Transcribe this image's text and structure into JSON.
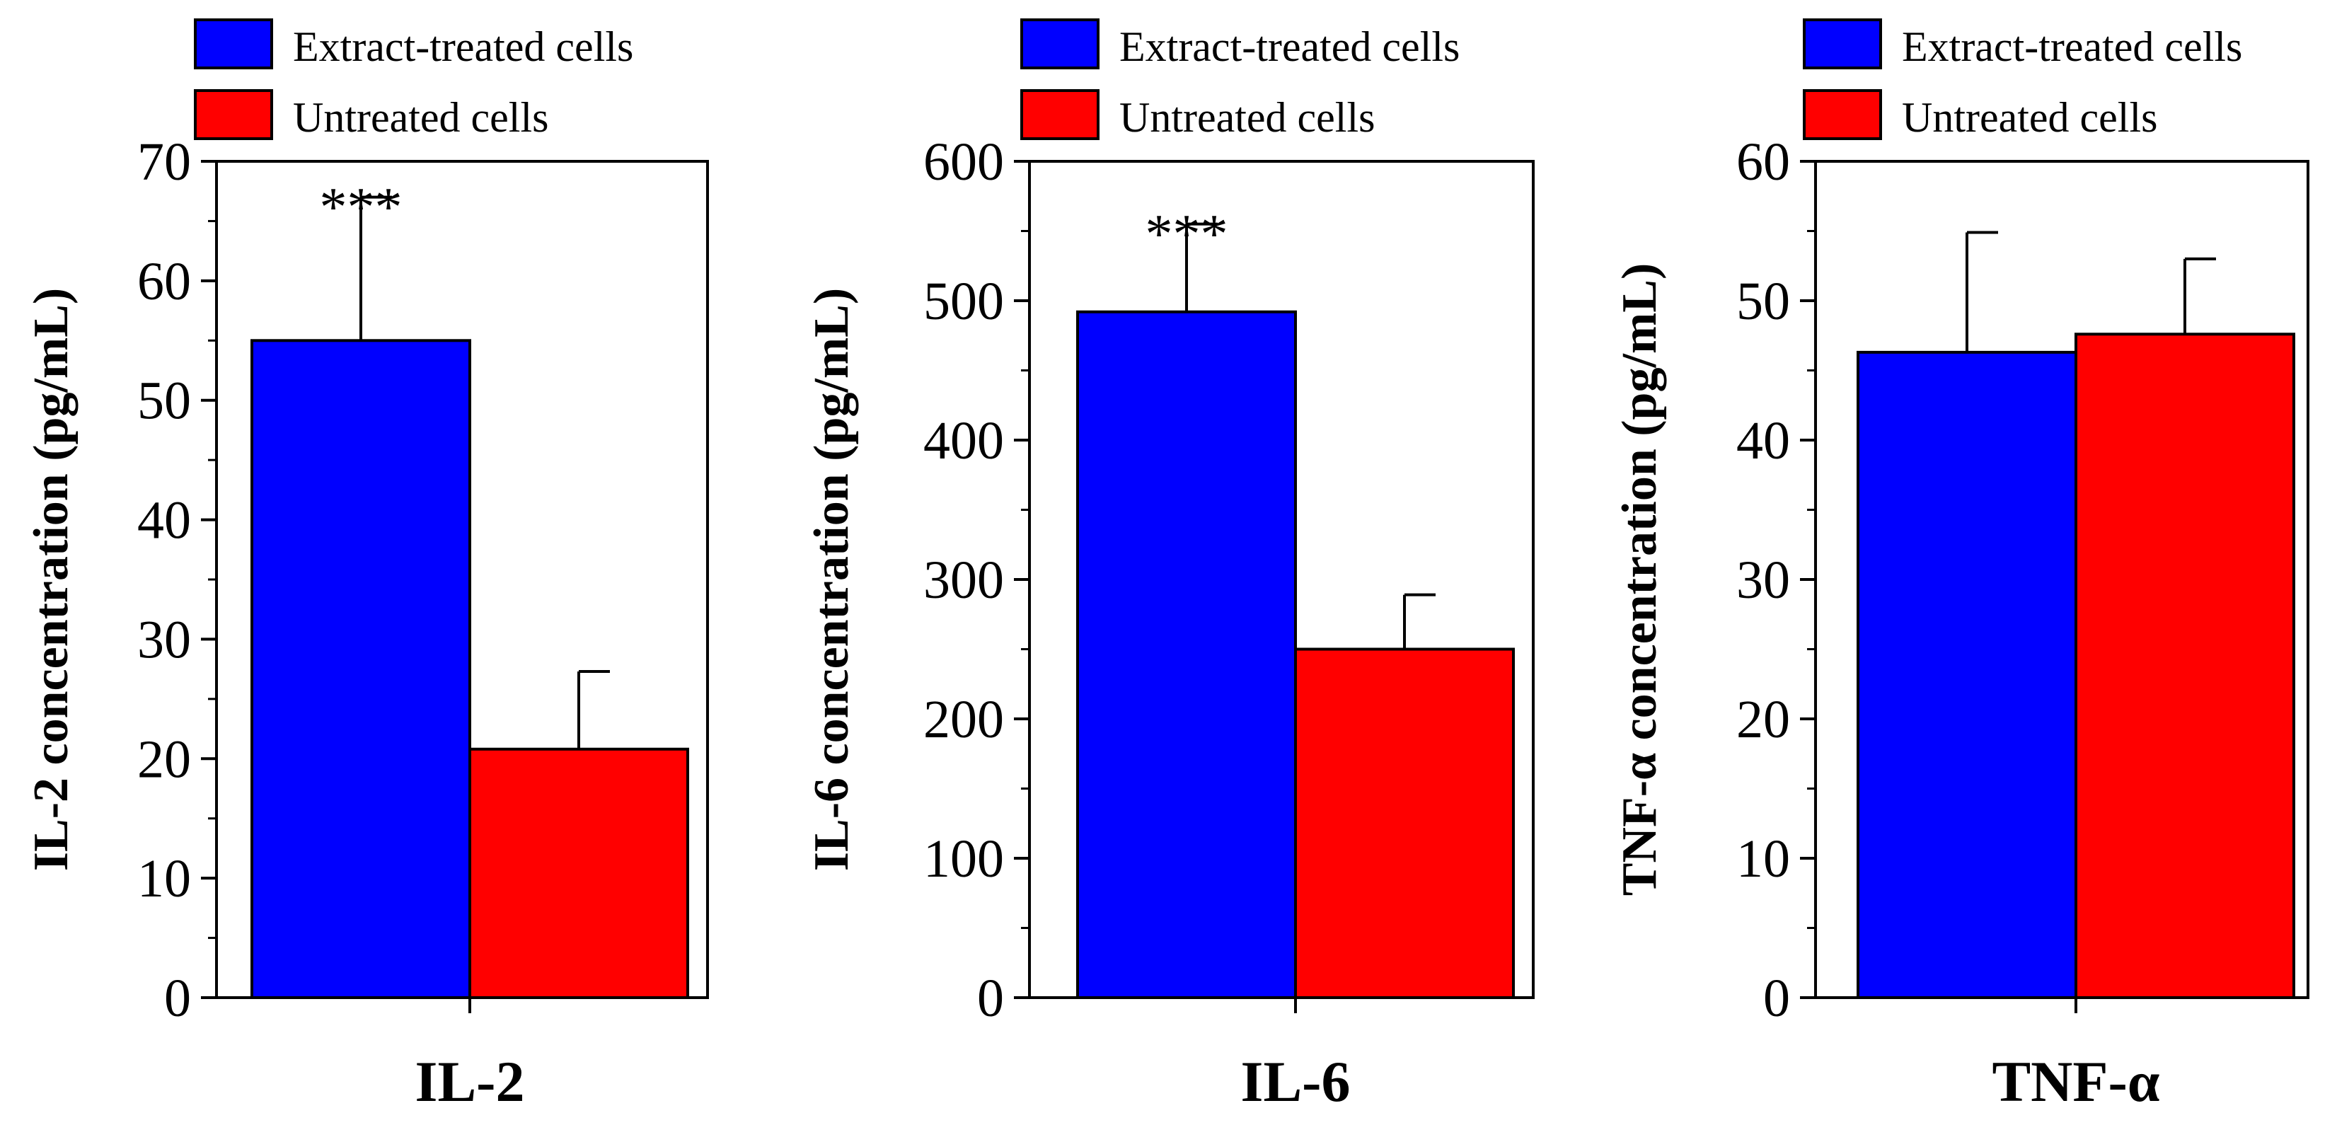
{
  "chart_data": [
    {
      "type": "bar",
      "categories": [
        "IL-2"
      ],
      "series": [
        {
          "name": "Extract-treated cells",
          "color": "#0000ff",
          "values": [
            55
          ],
          "error": [
            12
          ]
        },
        {
          "name": "Untreated cells",
          "color": "#ff0000",
          "values": [
            20.8
          ],
          "error": [
            6.5
          ]
        }
      ],
      "title": "",
      "xlabel": "IL-2",
      "ylabel": "IL-2 concentration (pg/mL)",
      "ylim": [
        0,
        70
      ],
      "yticks": [
        "0",
        "10",
        "20",
        "30",
        "40",
        "50",
        "60",
        "70"
      ],
      "annotations": [
        {
          "series": 0,
          "text": "***"
        }
      ],
      "legend": "top",
      "grid": false
    },
    {
      "type": "bar",
      "categories": [
        "IL-6"
      ],
      "series": [
        {
          "name": "Extract-treated cells",
          "color": "#0000ff",
          "values": [
            492
          ],
          "error": [
            63
          ]
        },
        {
          "name": "Untreated cells",
          "color": "#ff0000",
          "values": [
            250
          ],
          "error": [
            39
          ]
        }
      ],
      "title": "",
      "xlabel": "IL-6",
      "ylabel": "IL-6 concentration (pg/mL)",
      "ylim": [
        0,
        600
      ],
      "yticks": [
        "0",
        "100",
        "200",
        "300",
        "400",
        "500",
        "600"
      ],
      "annotations": [
        {
          "series": 0,
          "text": "***"
        }
      ],
      "legend": "top",
      "grid": false
    },
    {
      "type": "bar",
      "categories": [
        "TNF-α"
      ],
      "series": [
        {
          "name": "Extract-treated cells",
          "color": "#0000ff",
          "values": [
            46.3
          ],
          "error": [
            8.6
          ]
        },
        {
          "name": "Untreated cells",
          "color": "#ff0000",
          "values": [
            47.6
          ],
          "error": [
            5.4
          ]
        }
      ],
      "title": "",
      "xlabel": "TNF-α",
      "ylabel": "TNF-α concentration (pg/mL)",
      "ylim": [
        0,
        60
      ],
      "yticks": [
        "0",
        "10",
        "20",
        "30",
        "40",
        "50",
        "60"
      ],
      "annotations": [],
      "legend": "top",
      "grid": false
    }
  ]
}
